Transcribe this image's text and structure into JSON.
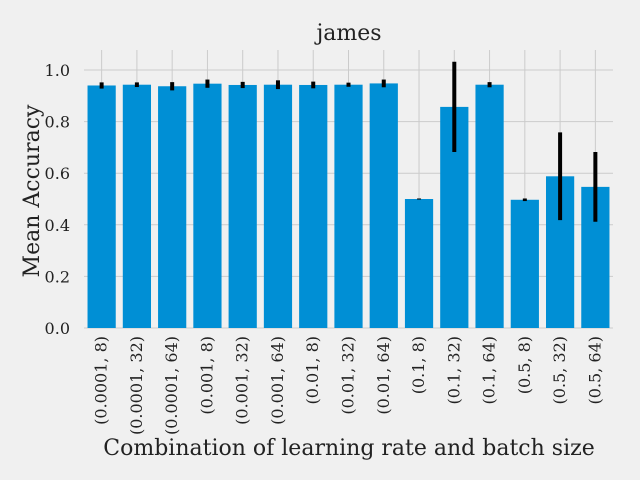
{
  "chart_data": {
    "type": "bar",
    "title": "james",
    "xlabel": "Combination of learning rate and batch size",
    "ylabel": "Mean Accuracy",
    "ylim": [
      0,
      1.08
    ],
    "yticks": [
      "0.0",
      "0.2",
      "0.4",
      "0.6",
      "0.8",
      "1.0"
    ],
    "categories": [
      "(0.0001, 8)",
      "(0.0001, 32)",
      "(0.0001, 64)",
      "(0.001, 8)",
      "(0.001, 32)",
      "(0.001, 64)",
      "(0.01, 8)",
      "(0.01, 32)",
      "(0.01, 64)",
      "(0.1, 8)",
      "(0.1, 32)",
      "(0.1, 64)",
      "(0.5, 8)",
      "(0.5, 32)",
      "(0.5, 64)"
    ],
    "values": [
      0.94,
      0.943,
      0.937,
      0.947,
      0.942,
      0.943,
      0.942,
      0.943,
      0.948,
      0.5,
      0.857,
      0.943,
      0.497,
      0.588,
      0.547
    ],
    "error": [
      0.012,
      0.009,
      0.016,
      0.016,
      0.012,
      0.017,
      0.013,
      0.008,
      0.015,
      0.002,
      0.175,
      0.01,
      0.005,
      0.17,
      0.135
    ],
    "grid": true,
    "colors": {
      "bar": "#008fd5",
      "background": "#f0f0f0",
      "grid": "#cbcbcb",
      "error": "#000000"
    }
  }
}
